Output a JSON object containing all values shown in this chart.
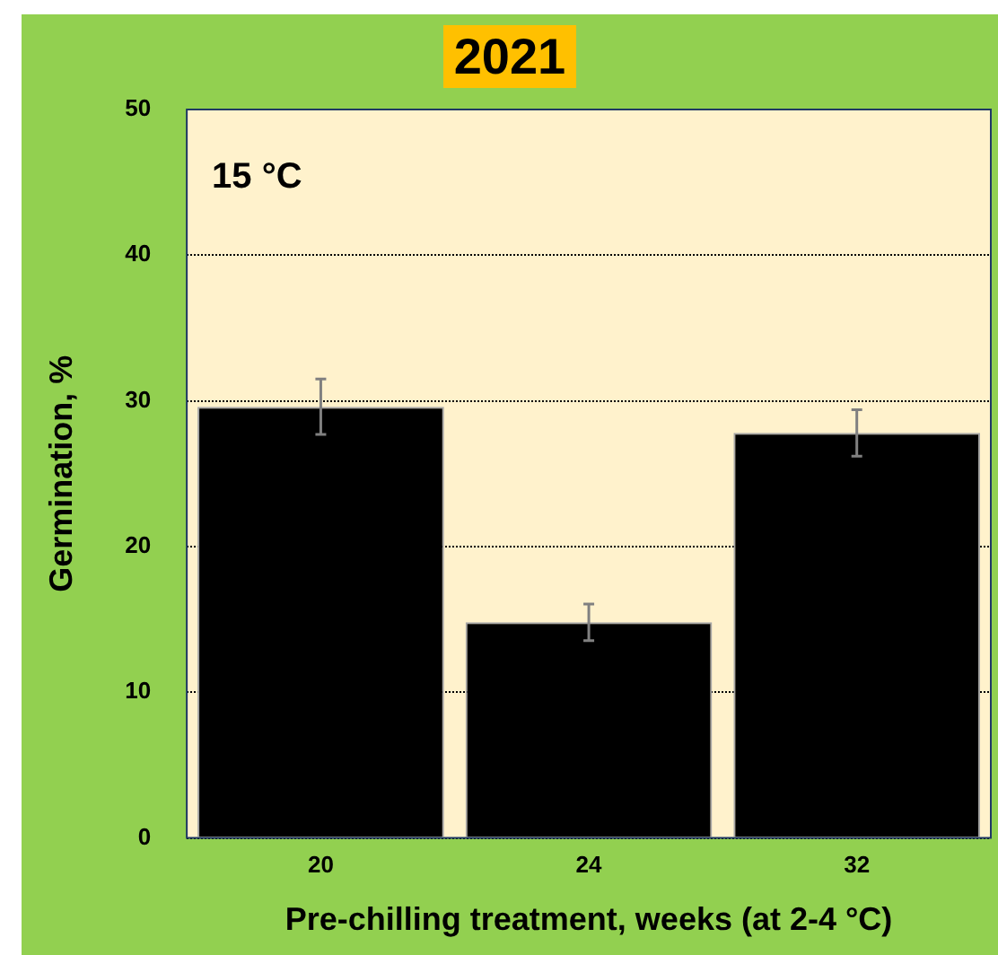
{
  "chart_data": {
    "type": "bar",
    "title": "2021",
    "xlabel": "Pre-chilling treatment, weeks (at 2-4 °C)",
    "ylabel": "Germination, %",
    "categories": [
      "20",
      "24",
      "32"
    ],
    "values": [
      29.6,
      14.8,
      27.8
    ],
    "errors": [
      1.9,
      1.25,
      1.6
    ],
    "color": "#000000",
    "ylim": [
      0,
      50
    ],
    "yticks": [
      0,
      10,
      20,
      30,
      40,
      50
    ],
    "grid": "y",
    "legend": false,
    "annotations": [
      "15 °C"
    ]
  }
}
